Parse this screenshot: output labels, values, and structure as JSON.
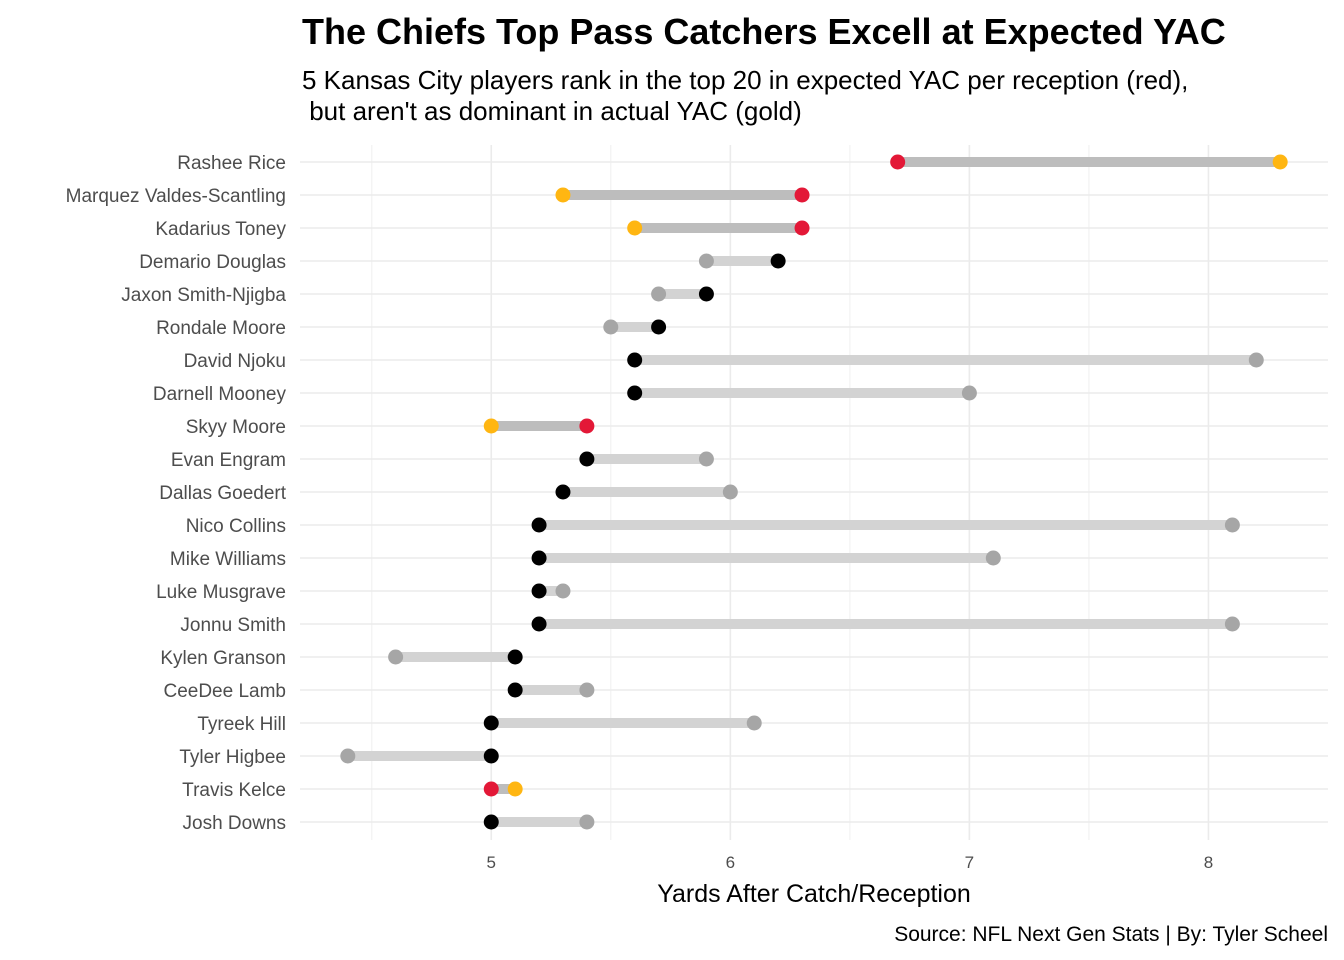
{
  "chart_data": {
    "type": "dumbbell",
    "title": "The Chiefs Top Pass Catchers Excell at Expected YAC",
    "subtitle_lines": [
      "5 Kansas City players rank in the top 20 in expected YAC per reception (red),",
      " but aren't as dominant in actual YAC (gold)"
    ],
    "xlabel": "Yards After Catch/Reception",
    "ylabel": "",
    "caption": "Source: NFL Next Gen Stats | By: Tyler Scheel",
    "xlim": [
      4.2,
      8.5
    ],
    "xticks": [
      5,
      6,
      7,
      8
    ],
    "grid": true,
    "legend": "none",
    "colors": {
      "chiefs_expected": "#e31837",
      "chiefs_actual": "#ffb612",
      "other_expected": "#000000",
      "other_actual": "#a6a6a6",
      "chiefs_segment": "#bdbdbd",
      "other_segment": "#d3d3d3",
      "grid_major": "#ebebeb",
      "grid_minor": "#f3f3f3"
    },
    "rows": [
      {
        "player": "Rashee Rice",
        "expected_yac": 6.7,
        "actual_yac": 8.3,
        "chiefs": true
      },
      {
        "player": "Marquez Valdes-Scantling",
        "expected_yac": 6.3,
        "actual_yac": 5.3,
        "chiefs": true
      },
      {
        "player": "Kadarius Toney",
        "expected_yac": 6.3,
        "actual_yac": 5.6,
        "chiefs": true
      },
      {
        "player": "Demario Douglas",
        "expected_yac": 6.2,
        "actual_yac": 5.9,
        "chiefs": false
      },
      {
        "player": "Jaxon Smith-Njigba",
        "expected_yac": 5.9,
        "actual_yac": 5.7,
        "chiefs": false
      },
      {
        "player": "Rondale Moore",
        "expected_yac": 5.7,
        "actual_yac": 5.5,
        "chiefs": false
      },
      {
        "player": "David Njoku",
        "expected_yac": 5.6,
        "actual_yac": 8.2,
        "chiefs": false
      },
      {
        "player": "Darnell Mooney",
        "expected_yac": 5.6,
        "actual_yac": 7.0,
        "chiefs": false
      },
      {
        "player": "Skyy Moore",
        "expected_yac": 5.4,
        "actual_yac": 5.0,
        "chiefs": true
      },
      {
        "player": "Evan Engram",
        "expected_yac": 5.4,
        "actual_yac": 5.9,
        "chiefs": false
      },
      {
        "player": "Dallas Goedert",
        "expected_yac": 5.3,
        "actual_yac": 6.0,
        "chiefs": false
      },
      {
        "player": "Nico Collins",
        "expected_yac": 5.2,
        "actual_yac": 8.1,
        "chiefs": false
      },
      {
        "player": "Mike Williams",
        "expected_yac": 5.2,
        "actual_yac": 7.1,
        "chiefs": false
      },
      {
        "player": "Luke Musgrave",
        "expected_yac": 5.2,
        "actual_yac": 5.3,
        "chiefs": false
      },
      {
        "player": "Jonnu Smith",
        "expected_yac": 5.2,
        "actual_yac": 8.1,
        "chiefs": false
      },
      {
        "player": "Kylen Granson",
        "expected_yac": 5.1,
        "actual_yac": 4.6,
        "chiefs": false
      },
      {
        "player": "CeeDee Lamb",
        "expected_yac": 5.1,
        "actual_yac": 5.4,
        "chiefs": false
      },
      {
        "player": "Tyreek Hill",
        "expected_yac": 5.0,
        "actual_yac": 6.1,
        "chiefs": false
      },
      {
        "player": "Tyler Higbee",
        "expected_yac": 5.0,
        "actual_yac": 4.4,
        "chiefs": false
      },
      {
        "player": "Travis Kelce",
        "expected_yac": 5.0,
        "actual_yac": 5.1,
        "chiefs": true
      },
      {
        "player": "Josh Downs",
        "expected_yac": 5.0,
        "actual_yac": 5.4,
        "chiefs": false
      }
    ]
  }
}
